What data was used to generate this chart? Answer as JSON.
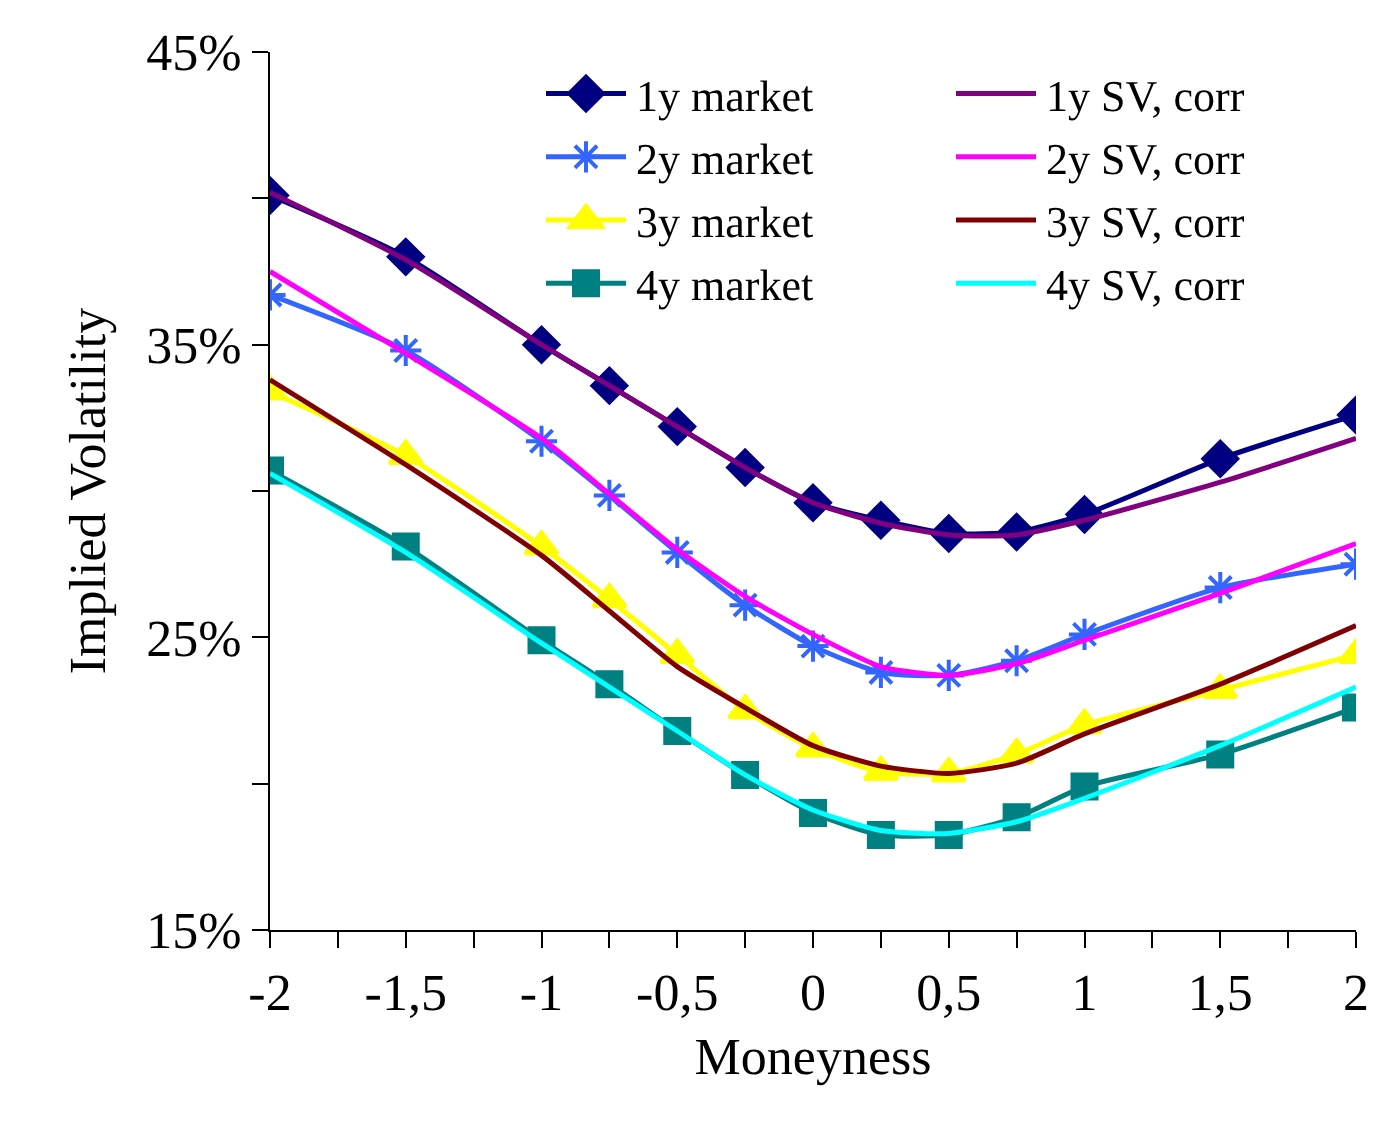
{
  "chart_data": {
    "type": "line",
    "xlabel": "Moneyness",
    "ylabel": "Implied Volatility",
    "x": [
      -2,
      -1.5,
      -1,
      -0.75,
      -0.5,
      -0.25,
      0,
      0.25,
      0.5,
      0.75,
      1,
      1.5,
      2
    ],
    "series": [
      {
        "name": "1y market",
        "color": "#000080",
        "marker": "diamond",
        "values": [
          40.1,
          38.0,
          35.0,
          33.6,
          32.2,
          30.8,
          29.6,
          29.0,
          28.55,
          28.6,
          29.2,
          31.1,
          32.6
        ]
      },
      {
        "name": "1y SV, corr",
        "color": "#800080",
        "marker": "none",
        "values": [
          40.2,
          37.9,
          35.0,
          33.6,
          32.2,
          30.8,
          29.6,
          28.9,
          28.5,
          28.5,
          29.0,
          30.3,
          31.8
        ]
      },
      {
        "name": "2y market",
        "color": "#3366ff",
        "marker": "cross",
        "values": [
          36.7,
          34.8,
          31.7,
          29.85,
          27.9,
          26.1,
          24.7,
          23.8,
          23.7,
          24.2,
          25.1,
          26.7,
          27.5
        ]
      },
      {
        "name": "2y SV, corr",
        "color": "#ff00ff",
        "marker": "none",
        "values": [
          37.5,
          34.7,
          31.8,
          29.9,
          28.0,
          26.4,
          25.1,
          24.0,
          23.7,
          24.1,
          24.9,
          26.5,
          28.2
        ]
      },
      {
        "name": "3y market",
        "color": "#ffff00",
        "marker": "triangle",
        "values": [
          33.4,
          31.2,
          28.1,
          26.3,
          24.4,
          22.5,
          21.2,
          20.4,
          20.35,
          21.0,
          22.0,
          23.2,
          24.4
        ]
      },
      {
        "name": "3y SV, corr",
        "color": "#800000",
        "marker": "none",
        "values": [
          33.8,
          30.9,
          27.8,
          25.9,
          24.0,
          22.6,
          21.3,
          20.6,
          20.35,
          20.7,
          21.7,
          23.4,
          25.4
        ]
      },
      {
        "name": "4y market",
        "color": "#008080",
        "marker": "square",
        "values": [
          30.7,
          28.1,
          24.9,
          23.4,
          21.8,
          20.3,
          19.0,
          18.25,
          18.25,
          18.85,
          19.9,
          21.0,
          22.6
        ]
      },
      {
        "name": "4y SV, corr",
        "color": "#00ffff",
        "marker": "none",
        "values": [
          30.6,
          27.9,
          24.8,
          23.3,
          21.8,
          20.3,
          19.1,
          18.4,
          18.3,
          18.7,
          19.5,
          21.3,
          23.3
        ]
      }
    ],
    "xlim": [
      -2,
      2
    ],
    "xticks": [
      {
        "value": -2,
        "label": "-2"
      },
      {
        "value": -1.75,
        "label": null
      },
      {
        "value": -1.5,
        "label": "-1,5"
      },
      {
        "value": -1.25,
        "label": null
      },
      {
        "value": -1,
        "label": "-1"
      },
      {
        "value": -0.75,
        "label": null
      },
      {
        "value": -0.5,
        "label": "-0,5"
      },
      {
        "value": -0.25,
        "label": null
      },
      {
        "value": 0,
        "label": "0"
      },
      {
        "value": 0.25,
        "label": null
      },
      {
        "value": 0.5,
        "label": "0,5"
      },
      {
        "value": 0.75,
        "label": null
      },
      {
        "value": 1,
        "label": "1"
      },
      {
        "value": 1.25,
        "label": null
      },
      {
        "value": 1.5,
        "label": "1,5"
      },
      {
        "value": 1.75,
        "label": null
      },
      {
        "value": 2,
        "label": "2"
      }
    ],
    "ylim": [
      15,
      45
    ],
    "yticks": [
      {
        "value": 15,
        "label": "15%"
      },
      {
        "value": 20,
        "label": null
      },
      {
        "value": 25,
        "label": "25%"
      },
      {
        "value": 30,
        "label": null
      },
      {
        "value": 35,
        "label": "35%"
      },
      {
        "value": 40,
        "label": null
      },
      {
        "value": 45,
        "label": "45%"
      }
    ],
    "legend": "top right",
    "line_style": "solid"
  }
}
